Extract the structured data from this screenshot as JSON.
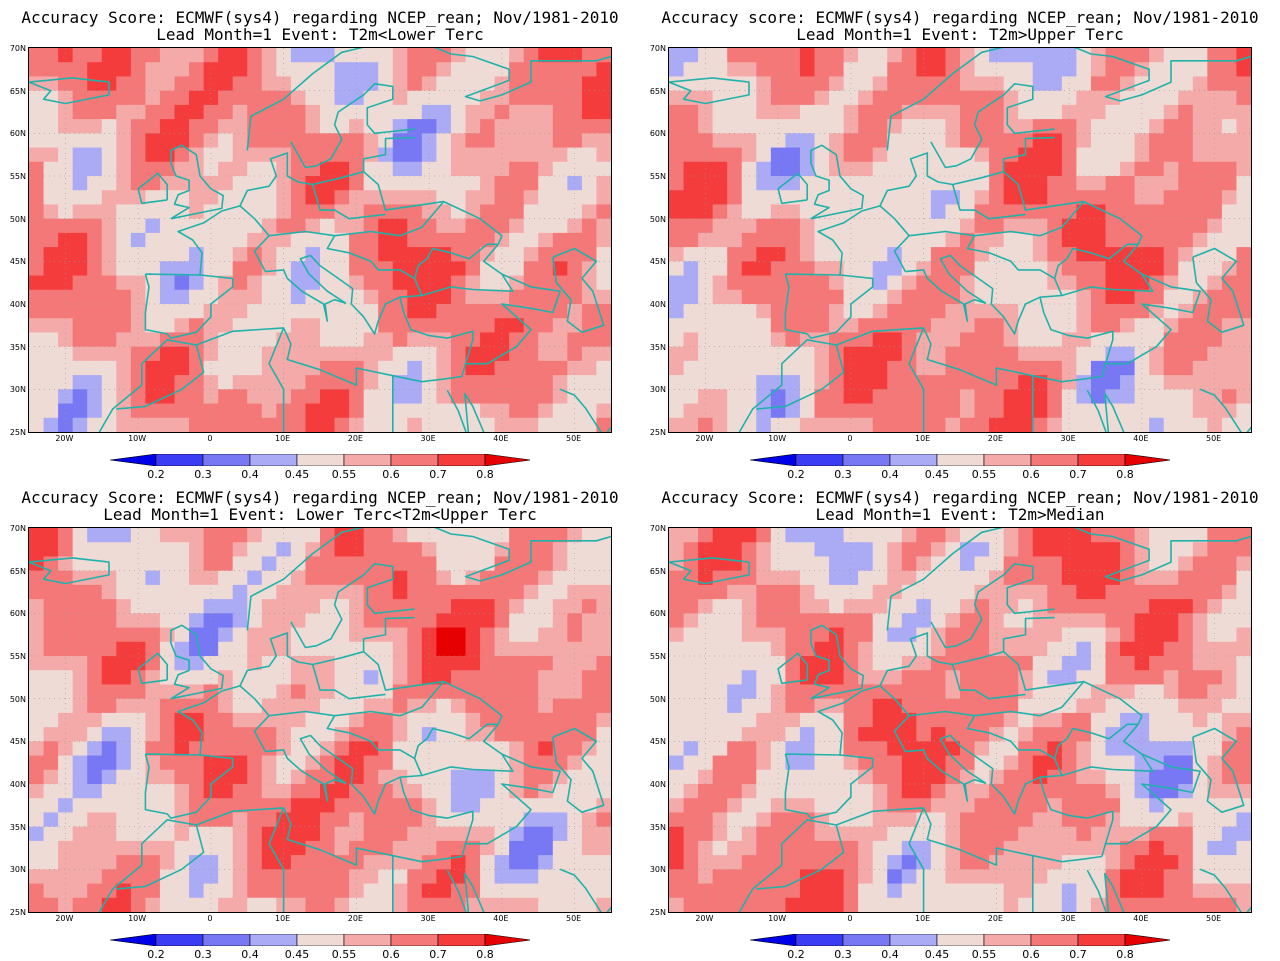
{
  "panels": [
    {
      "title_line1": "Accuracy Score: ECMWF(sys4) regarding NCEP_rean; Nov/1981-2010",
      "title_line2": "Lead Month=1 Event: T2m<Lower Terc",
      "variant": 0
    },
    {
      "title_line1": "Accuracy score: ECMWF(sys4) regarding NCEP_rean; Nov/1981-2010",
      "title_line2": "Lead Month=1 Event: T2m>Upper Terc",
      "variant": 1
    },
    {
      "title_line1": "Accuracy Score: ECMWF(sys4) regarding NCEP_rean; Nov/1981-2010",
      "title_line2": "Lead Month=1 Event: Lower Terc<T2m<Upper Terc",
      "variant": 2
    },
    {
      "title_line1": "Accuracy Score: ECMWF(sys4) regarding NCEP_rean; Nov/1981-2010",
      "title_line2": "Lead Month=1 Event: T2m>Median",
      "variant": 3
    }
  ],
  "lat_ticks": [
    "70N",
    "65N",
    "60N",
    "55N",
    "50N",
    "45N",
    "40N",
    "35N",
    "30N",
    "25N"
  ],
  "lon_ticks": [
    "20W",
    "10W",
    "0",
    "10E",
    "20E",
    "30E",
    "40E",
    "50E"
  ],
  "colorbar": {
    "labels": [
      "0.2",
      "0.3",
      "0.4",
      "0.45",
      "0.55",
      "0.6",
      "0.7",
      "0.8"
    ],
    "colors": [
      "#0000e6",
      "#3c3cf5",
      "#7878f5",
      "#aaaaf5",
      "#efdbd5",
      "#f5aaaa",
      "#f57878",
      "#f53c3c",
      "#e60000"
    ]
  },
  "map_extent": {
    "lon_min": -25,
    "lon_max": 55,
    "lat_min": 25,
    "lat_max": 70
  },
  "coastline_color": "#20b2aa"
}
